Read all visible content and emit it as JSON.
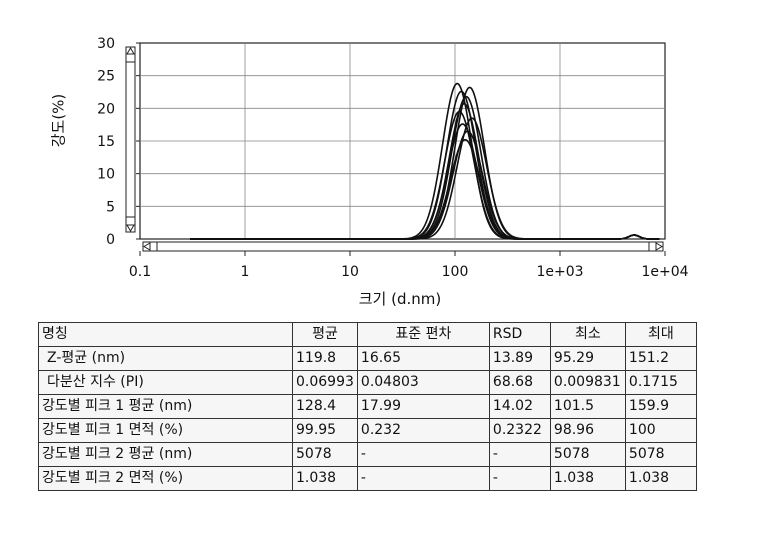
{
  "chart_data": {
    "type": "line",
    "xlabel": "크기 (d.nm)",
    "ylabel": "강도(%)",
    "x_scale": "log",
    "xlim": [
      0.1,
      10000
    ],
    "ylim": [
      0,
      30
    ],
    "x_ticks": [
      "0.1",
      "1",
      "10",
      "100",
      "1e+03",
      "1e+04"
    ],
    "y_ticks": [
      "0",
      "5",
      "10",
      "15",
      "20",
      "25",
      "30"
    ],
    "grid": true,
    "series": [
      {
        "center": 105,
        "peak": 23.8
      },
      {
        "center": 138,
        "peak": 23.2
      },
      {
        "center": 115,
        "peak": 22.6
      },
      {
        "center": 128,
        "peak": 21.8
      },
      {
        "center": 122,
        "peak": 20.7
      },
      {
        "center": 110,
        "peak": 19.5
      },
      {
        "center": 145,
        "peak": 18.5
      },
      {
        "center": 118,
        "peak": 17.6
      },
      {
        "center": 132,
        "peak": 16.5
      },
      {
        "center": 125,
        "peak": 15.2
      }
    ],
    "minor_peak": {
      "x": 5078,
      "y": 0.6
    }
  },
  "table": {
    "headers": [
      "명칭",
      "평균",
      "표준 편차",
      "RSD",
      "최소",
      "최대"
    ],
    "rows": [
      [
        "Z-평균 (nm)",
        "119.8",
        "16.65",
        "13.89",
        "95.29",
        "151.2"
      ],
      [
        "다분산 지수 (PI)",
        "0.06993",
        "0.04803",
        "68.68",
        "0.009831",
        "0.1715"
      ],
      [
        "강도별 피크 1 평균 (nm)",
        "128.4",
        "17.99",
        "14.02",
        "101.5",
        "159.9"
      ],
      [
        "강도별 피크 1 면적 (%)",
        "99.95",
        "0.232",
        "0.2322",
        "98.96",
        "100"
      ],
      [
        "강도별 피크 2 평균 (nm)",
        "5078",
        "-",
        "-",
        "5078",
        "5078"
      ],
      [
        "강도별 피크 2 면적 (%)",
        "1.038",
        "-",
        "-",
        "1.038",
        "1.038"
      ]
    ]
  }
}
